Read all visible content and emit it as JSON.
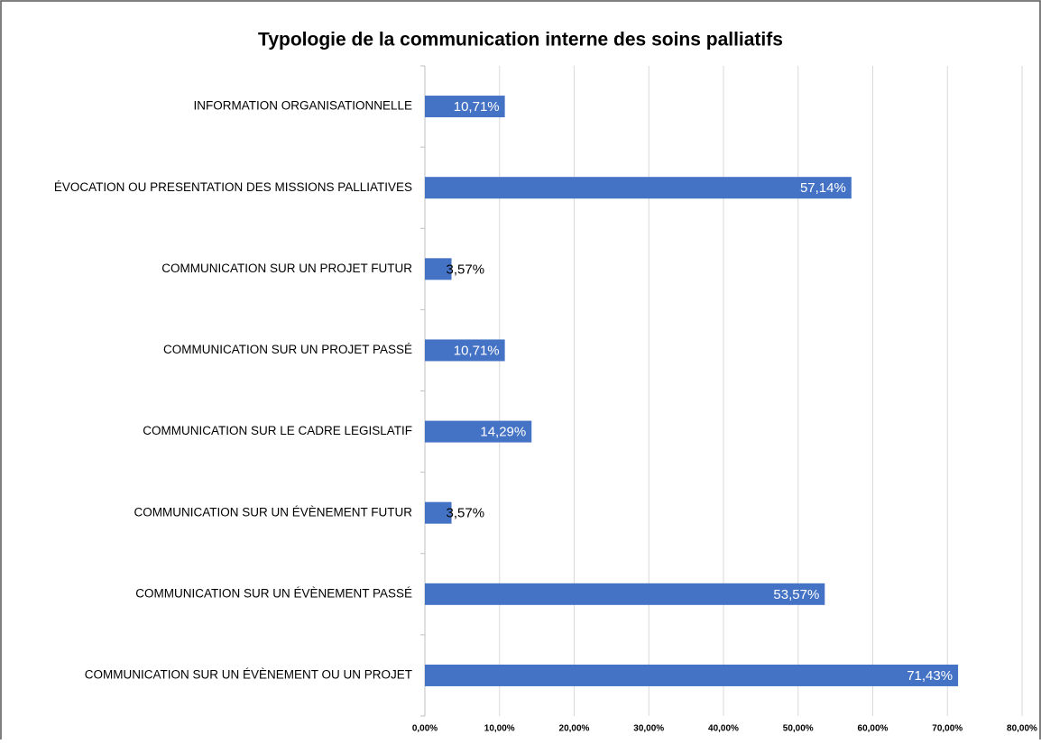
{
  "chart_data": {
    "type": "barh",
    "title": "Typologie de la communication interne des soins palliatifs",
    "categories": [
      "INFORMATION ORGANISATIONNELLE",
      "ÉVOCATION OU PRESENTATION DES MISSIONS PALLIATIVES",
      "COMMUNICATION SUR UN PROJET FUTUR",
      "COMMUNICATION SUR UN PROJET PASSÉ",
      "COMMUNICATION SUR LE CADRE LEGISLATIF",
      "COMMUNICATION SUR UN ÉVÈNEMENT FUTUR",
      "COMMUNICATION SUR UN ÉVÈNEMENT PASSÉ",
      "COMMUNICATION SUR UN ÉVÈNEMENT OU UN PROJET"
    ],
    "values": [
      10.71,
      57.14,
      3.57,
      10.71,
      14.29,
      3.57,
      53.57,
      71.43
    ],
    "value_labels": [
      "10,71%",
      "57,14%",
      "3,57%",
      "10,71%",
      "14,29%",
      "3,57%",
      "53,57%",
      "71,43%"
    ],
    "color": "#4472c4",
    "xlim": [
      0,
      80
    ],
    "xticks": [
      {
        "value": 0,
        "label": "0,00%"
      },
      {
        "value": 10,
        "label": "10,00%"
      },
      {
        "value": 20,
        "label": "20,00%"
      },
      {
        "value": 30,
        "label": "30,00%"
      },
      {
        "value": 40,
        "label": "40,00%"
      },
      {
        "value": 50,
        "label": "50,00%"
      },
      {
        "value": 60,
        "label": "60,00%"
      },
      {
        "value": 70,
        "label": "70,00%"
      },
      {
        "value": 80,
        "label": "80,00%"
      }
    ],
    "grid": true
  }
}
